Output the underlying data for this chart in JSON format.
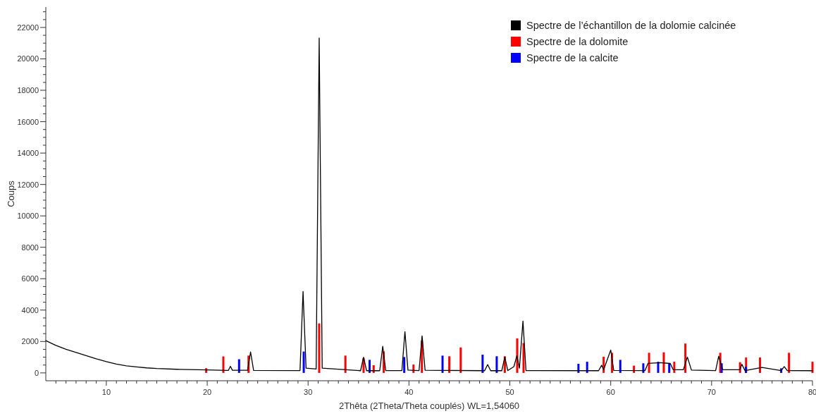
{
  "chart_data": {
    "type": "line",
    "xlabel": "2Thêta (2Theta/Theta couplés) WL=1,54060",
    "ylabel": "Coups",
    "xlim": [
      4,
      80
    ],
    "ylim": [
      -500,
      23300
    ],
    "xticks": [
      {
        "value": 5,
        "label": null
      },
      {
        "value": 6,
        "label": null
      },
      {
        "value": 7,
        "label": null
      },
      {
        "value": 8,
        "label": null
      },
      {
        "value": 9,
        "label": null
      },
      10,
      {
        "value": 11,
        "label": null
      },
      {
        "value": 12,
        "label": null
      },
      {
        "value": 13,
        "label": null
      },
      {
        "value": 14,
        "label": null
      },
      {
        "value": 15,
        "label": null
      },
      {
        "value": 16,
        "label": null
      },
      {
        "value": 17,
        "label": null
      },
      {
        "value": 18,
        "label": null
      },
      {
        "value": 19,
        "label": null
      },
      20,
      {
        "value": 21,
        "label": null
      },
      {
        "value": 22,
        "label": null
      },
      {
        "value": 23,
        "label": null
      },
      {
        "value": 24,
        "label": null
      },
      {
        "value": 25,
        "label": null
      },
      {
        "value": 26,
        "label": null
      },
      {
        "value": 27,
        "label": null
      },
      {
        "value": 28,
        "label": null
      },
      {
        "value": 29,
        "label": null
      },
      30,
      {
        "value": 31,
        "label": null
      },
      {
        "value": 32,
        "label": null
      },
      {
        "value": 33,
        "label": null
      },
      {
        "value": 34,
        "label": null
      },
      {
        "value": 35,
        "label": null
      },
      {
        "value": 36,
        "label": null
      },
      {
        "value": 37,
        "label": null
      },
      {
        "value": 38,
        "label": null
      },
      {
        "value": 39,
        "label": null
      },
      40,
      {
        "value": 41,
        "label": null
      },
      {
        "value": 42,
        "label": null
      },
      {
        "value": 43,
        "label": null
      },
      {
        "value": 44,
        "label": null
      },
      {
        "value": 45,
        "label": null
      },
      {
        "value": 46,
        "label": null
      },
      {
        "value": 47,
        "label": null
      },
      {
        "value": 48,
        "label": null
      },
      {
        "value": 49,
        "label": null
      },
      50,
      {
        "value": 51,
        "label": null
      },
      {
        "value": 52,
        "label": null
      },
      {
        "value": 53,
        "label": null
      },
      {
        "value": 54,
        "label": null
      },
      {
        "value": 55,
        "label": null
      },
      {
        "value": 56,
        "label": null
      },
      {
        "value": 57,
        "label": null
      },
      {
        "value": 58,
        "label": null
      },
      {
        "value": 59,
        "label": null
      },
      60,
      {
        "value": 61,
        "label": null
      },
      {
        "value": 62,
        "label": null
      },
      {
        "value": 63,
        "label": null
      },
      {
        "value": 64,
        "label": null
      },
      {
        "value": 65,
        "label": null
      },
      {
        "value": 66,
        "label": null
      },
      {
        "value": 67,
        "label": null
      },
      {
        "value": 68,
        "label": null
      },
      {
        "value": 69,
        "label": null
      },
      70,
      {
        "value": 71,
        "label": null
      },
      {
        "value": 72,
        "label": null
      },
      {
        "value": 73,
        "label": null
      },
      {
        "value": 74,
        "label": null
      },
      {
        "value": 75,
        "label": null
      },
      {
        "value": 76,
        "label": null
      },
      {
        "value": 77,
        "label": null
      },
      {
        "value": 78,
        "label": null
      },
      {
        "value": 79,
        "label": null
      },
      80
    ],
    "yticks": [
      0,
      {
        "value": 500,
        "label": null
      },
      {
        "value": 1000,
        "label": null
      },
      {
        "value": 1500,
        "label": null
      },
      2000,
      {
        "value": 2500,
        "label": null
      },
      {
        "value": 3000,
        "label": null
      },
      {
        "value": 3500,
        "label": null
      },
      4000,
      {
        "value": 4500,
        "label": null
      },
      {
        "value": 5000,
        "label": null
      },
      {
        "value": 5500,
        "label": null
      },
      6000,
      {
        "value": 6500,
        "label": null
      },
      {
        "value": 7000,
        "label": null
      },
      {
        "value": 7500,
        "label": null
      },
      8000,
      {
        "value": 8500,
        "label": null
      },
      {
        "value": 9000,
        "label": null
      },
      {
        "value": 9500,
        "label": null
      },
      10000,
      {
        "value": 10500,
        "label": null
      },
      {
        "value": 11000,
        "label": null
      },
      {
        "value": 11500,
        "label": null
      },
      12000,
      {
        "value": 12500,
        "label": null
      },
      {
        "value": 13000,
        "label": null
      },
      {
        "value": 13500,
        "label": null
      },
      14000,
      {
        "value": 14500,
        "label": null
      },
      {
        "value": 15000,
        "label": null
      },
      {
        "value": 15500,
        "label": null
      },
      16000,
      {
        "value": 16500,
        "label": null
      },
      {
        "value": 17000,
        "label": null
      },
      {
        "value": 17500,
        "label": null
      },
      18000,
      {
        "value": 18500,
        "label": null
      },
      {
        "value": 19000,
        "label": null
      },
      {
        "value": 19500,
        "label": null
      },
      20000,
      {
        "value": 20500,
        "label": null
      },
      {
        "value": 21000,
        "label": null
      },
      {
        "value": 21500,
        "label": null
      },
      22000,
      {
        "value": 22500,
        "label": null
      },
      {
        "value": 23000,
        "label": null
      }
    ],
    "legend": "top right",
    "marker": "none",
    "line_style": "solid",
    "series": [
      {
        "name": "Spectre de l’échantillon de la dolomie calcinée",
        "color": "#000000",
        "x": [
          4,
          5,
          6,
          7,
          8,
          9,
          10,
          11,
          12,
          13,
          14,
          15,
          17,
          20,
          22,
          22.1,
          22.3,
          22.5,
          24.0,
          24.3,
          24.6,
          29.2,
          29.5,
          29.8,
          30.8,
          31.1,
          31.4,
          35.2,
          35.5,
          35.8,
          37.1,
          37.4,
          37.7,
          39.3,
          39.6,
          39.9,
          41.0,
          41.3,
          41.6,
          47.5,
          47.8,
          48.1,
          49.2,
          49.5,
          49.8,
          50.4,
          50.7,
          50.95,
          51.3,
          51.6,
          58.8,
          59.1,
          59.3,
          60.0,
          60.3,
          63.4,
          63.7,
          64.9,
          65.9,
          66.2,
          67.2,
          67.6,
          68.0,
          70.4,
          70.7,
          71.1,
          72.8,
          73.0,
          73.3,
          75.0,
          76.9,
          77.2,
          77.5,
          80
        ],
        "values": [
          2050,
          1750,
          1500,
          1300,
          1100,
          900,
          720,
          560,
          450,
          380,
          320,
          280,
          230,
          190,
          160,
          160,
          420,
          170,
          170,
          1330,
          160,
          150,
          5180,
          300,
          250,
          21330,
          300,
          140,
          1000,
          140,
          140,
          1690,
          150,
          150,
          2630,
          180,
          150,
          2360,
          170,
          140,
          530,
          140,
          140,
          1000,
          150,
          400,
          1100,
          300,
          3300,
          150,
          140,
          490,
          200,
          1460,
          160,
          150,
          610,
          650,
          600,
          200,
          200,
          1010,
          180,
          150,
          1060,
          200,
          200,
          550,
          150,
          350,
          150,
          400,
          150,
          140
        ]
      },
      {
        "name": "Spectre de la dolomite",
        "type": "bar",
        "color": "#ff0000",
        "x": [
          19.9,
          21.6,
          24.1,
          31.1,
          33.7,
          35.5,
          36.5,
          37.5,
          40.45,
          41.28,
          44.0,
          45.13,
          49.5,
          50.73,
          51.36,
          59.3,
          60.13,
          62.3,
          63.8,
          65.26,
          66.3,
          67.4,
          70.86,
          72.82,
          73.42,
          74.8,
          77.67,
          80.0
        ],
        "values": [
          300,
          1050,
          1100,
          3150,
          1100,
          940,
          490,
          1370,
          530,
          2050,
          1060,
          1620,
          1060,
          2200,
          1900,
          1030,
          1280,
          460,
          1280,
          1310,
          710,
          1870,
          1280,
          680,
          980,
          980,
          1280,
          710
        ]
      },
      {
        "name": "Spectre de la calcite",
        "type": "bar",
        "color": "#0000ff",
        "x": [
          23.16,
          29.57,
          36.1,
          39.53,
          43.33,
          47.3,
          48.7,
          56.8,
          57.66,
          60.95,
          63.23,
          64.7,
          65.8,
          71.0,
          73.4,
          76.9
        ],
        "values": [
          870,
          1360,
          830,
          1010,
          1100,
          1160,
          1060,
          580,
          710,
          830,
          610,
          710,
          610,
          610,
          390,
          290
        ]
      }
    ]
  }
}
